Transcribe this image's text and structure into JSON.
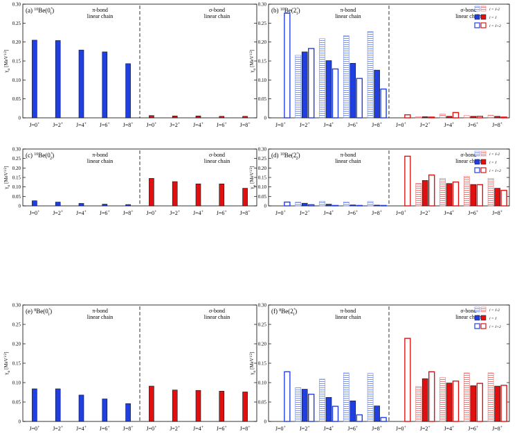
{
  "chart_data": [
    {
      "type": "bar",
      "panel_label": "(a)",
      "title": "(a) 10Be(0+1)",
      "nucleus": "10Be",
      "mass": "10",
      "element": "Be",
      "state": "0",
      "state_sup": "+",
      "state_sub": "1",
      "ylabel": "γα [MeV1/2]",
      "ylim": [
        0,
        0.3
      ],
      "yticks": [
        "0",
        "0.05",
        "0.10",
        "0.15",
        "0.20",
        "0.25",
        "0.30"
      ],
      "region_labels": {
        "left": [
          "π-bond",
          "linear chain"
        ],
        "right": [
          "σ-bond",
          "linear chain"
        ]
      },
      "categories": [
        "J=0+",
        "J=2+",
        "J=4+",
        "J=6+",
        "J=8+"
      ],
      "groups": [
        {
          "name": "π-bond linear chain",
          "color": "blue",
          "series": [
            {
              "name": "l",
              "pattern": "solid",
              "values": [
                0.205,
                0.204,
                0.179,
                0.174,
                0.143
              ]
            }
          ]
        },
        {
          "name": "σ-bond linear chain",
          "color": "red",
          "series": [
            {
              "name": "l",
              "pattern": "solid",
              "values": [
                0.006,
                0.005,
                0.005,
                0.004,
                0.004
              ]
            }
          ]
        }
      ]
    },
    {
      "type": "bar",
      "panel_label": "(b)",
      "title": "(b) 10Be(2+1)",
      "nucleus": "10Be",
      "mass": "10",
      "element": "Be",
      "state": "2",
      "state_sup": "+",
      "state_sub": "1",
      "ylabel": "γα [MeV1/2]",
      "ylim": [
        0,
        0.3
      ],
      "yticks": [
        "0",
        "0.05",
        "0.10",
        "0.15",
        "0.20",
        "0.25",
        "0.30"
      ],
      "region_labels": {
        "left": [
          "π-bond",
          "linear chain"
        ],
        "right": [
          "σ-bond",
          "linear chain"
        ]
      },
      "legend": [
        "l = J-2",
        "l = J",
        "l = J+2"
      ],
      "legend_position": "top-right",
      "categories": [
        "J=0+",
        "J=2+",
        "J=4+",
        "J=6+",
        "J=8+"
      ],
      "groups": [
        {
          "name": "π-bond linear chain",
          "color": "blue",
          "series": [
            {
              "name": "l = J-2",
              "pattern": "hatched",
              "values": [
                null,
                0.165,
                0.209,
                0.217,
                0.228
              ]
            },
            {
              "name": "l = J",
              "pattern": "solid",
              "values": [
                null,
                0.174,
                0.151,
                0.144,
                0.126
              ]
            },
            {
              "name": "l = J+2",
              "pattern": "open",
              "values": [
                0.276,
                0.183,
                0.129,
                0.104,
                0.076
              ]
            }
          ]
        },
        {
          "name": "σ-bond linear chain",
          "color": "red",
          "series": [
            {
              "name": "l = J-2",
              "pattern": "hatched",
              "values": [
                null,
                0.003,
                0.01,
                0.006,
                0.007
              ]
            },
            {
              "name": "l = J",
              "pattern": "solid",
              "values": [
                null,
                0.003,
                0.004,
                0.004,
                0.004
              ]
            },
            {
              "name": "l = J+2",
              "pattern": "open",
              "values": [
                0.008,
                0.002,
                0.014,
                0.004,
                0.002
              ]
            }
          ]
        }
      ]
    },
    {
      "type": "bar",
      "panel_label": "(c)",
      "title": "(c) 10Be(0+2)",
      "nucleus": "10Be",
      "mass": "10",
      "element": "Be",
      "state": "0",
      "state_sup": "+",
      "state_sub": "2",
      "ylabel": "γα [MeV1/2]",
      "ylim": [
        0,
        0.3
      ],
      "yticks": [
        "0",
        "0.05",
        "0.10",
        "0.15",
        "0.20",
        "0.25",
        "0.30"
      ],
      "region_labels": {
        "left": [
          "π-bond",
          "linear chain"
        ],
        "right": [
          "σ-bond",
          "linear chain"
        ]
      },
      "categories": [
        "J=0+",
        "J=2+",
        "J=4+",
        "J=6+",
        "J=8+"
      ],
      "groups": [
        {
          "name": "π-bond linear chain",
          "color": "blue",
          "series": [
            {
              "name": "l",
              "pattern": "solid",
              "values": [
                0.027,
                0.02,
                0.013,
                0.009,
                0.007
              ]
            }
          ]
        },
        {
          "name": "σ-bond linear chain",
          "color": "red",
          "series": [
            {
              "name": "l",
              "pattern": "solid",
              "values": [
                0.145,
                0.128,
                0.116,
                0.116,
                0.093
              ]
            }
          ]
        }
      ]
    },
    {
      "type": "bar",
      "panel_label": "(d)",
      "title": "(d) 10Be(2+2)",
      "nucleus": "10Be",
      "mass": "10",
      "element": "Be",
      "state": "2",
      "state_sup": "+",
      "state_sub": "2",
      "ylabel": "γα [MeV1/2]",
      "ylim": [
        0,
        0.3
      ],
      "yticks": [
        "0",
        "0.05",
        "0.10",
        "0.15",
        "0.20",
        "0.25",
        "0.30"
      ],
      "region_labels": {
        "left": [
          "π-bond",
          "linear chain"
        ],
        "right": [
          "σ-bond",
          "linear chain"
        ]
      },
      "legend": [
        "l = J-2",
        "l = J",
        "l = J+2"
      ],
      "legend_position": "top-right",
      "categories": [
        "J=0+",
        "J=2+",
        "J=4+",
        "J=6+",
        "J=8+"
      ],
      "groups": [
        {
          "name": "π-bond linear chain",
          "color": "blue",
          "series": [
            {
              "name": "l = J-2",
              "pattern": "hatched",
              "values": [
                null,
                0.02,
                0.024,
                0.021,
                0.023
              ]
            },
            {
              "name": "l = J",
              "pattern": "solid",
              "values": [
                null,
                0.014,
                0.009,
                0.005,
                0.004
              ]
            },
            {
              "name": "l = J+2",
              "pattern": "open",
              "values": [
                0.02,
                0.006,
                0.002,
                0.002,
                0.001
              ]
            }
          ]
        },
        {
          "name": "σ-bond linear chain",
          "color": "red",
          "series": [
            {
              "name": "l = J-2",
              "pattern": "hatched",
              "values": [
                null,
                0.119,
                0.145,
                0.155,
                0.145
              ]
            },
            {
              "name": "l = J",
              "pattern": "solid",
              "values": [
                null,
                0.134,
                0.118,
                0.113,
                0.093
              ]
            },
            {
              "name": "l = J+2",
              "pattern": "open",
              "values": [
                0.262,
                0.163,
                0.126,
                0.112,
                0.082
              ]
            }
          ]
        }
      ]
    },
    {
      "type": "bar",
      "panel_label": "(e)",
      "title": "(e) 8Be(0+1)",
      "nucleus": "8Be",
      "mass": "8",
      "element": "Be",
      "state": "0",
      "state_sup": "+",
      "state_sub": "1",
      "ylabel": "γα [MeV1/2]",
      "ylim": [
        0,
        0.3
      ],
      "yticks": [
        "0",
        "0.05",
        "0.10",
        "0.15",
        "0.20",
        "0.25",
        "0.30"
      ],
      "region_labels": {
        "left": [
          "π-bond",
          "linear chain"
        ],
        "right": [
          "σ-bond",
          "linear chain"
        ]
      },
      "categories": [
        "J=0+",
        "J=2+",
        "J=4+",
        "J=6+",
        "J=8+"
      ],
      "groups": [
        {
          "name": "π-bond linear chain",
          "color": "blue",
          "series": [
            {
              "name": "l",
              "pattern": "solid",
              "values": [
                0.084,
                0.084,
                0.068,
                0.058,
                0.046
              ]
            }
          ]
        },
        {
          "name": "σ-bond linear chain",
          "color": "red",
          "series": [
            {
              "name": "l",
              "pattern": "solid",
              "values": [
                0.091,
                0.081,
                0.08,
                0.078,
                0.076
              ]
            }
          ]
        }
      ]
    },
    {
      "type": "bar",
      "panel_label": "(f)",
      "title": "(f) 8Be(2+1)",
      "nucleus": "8Be",
      "mass": "8",
      "element": "Be",
      "state": "2",
      "state_sup": "+",
      "state_sub": "1",
      "ylabel": "γα [MeV1/2]",
      "ylim": [
        0,
        0.3
      ],
      "yticks": [
        "0",
        "0.05",
        "0.10",
        "0.15",
        "0.20",
        "0.25",
        "0.30"
      ],
      "region_labels": {
        "left": [
          "π-bond",
          "linear chain"
        ],
        "right": [
          "σ-bond",
          "linear chain"
        ]
      },
      "legend": [
        "l = J-2",
        "l = J",
        "l = J+2"
      ],
      "legend_position": "top-right",
      "categories": [
        "J=0+",
        "J=2+",
        "J=4+",
        "J=6+",
        "J=8+"
      ],
      "groups": [
        {
          "name": "π-bond linear chain",
          "color": "blue",
          "series": [
            {
              "name": "l = J-2",
              "pattern": "hatched",
              "values": [
                null,
                0.087,
                0.109,
                0.125,
                0.124
              ]
            },
            {
              "name": "l = J",
              "pattern": "solid",
              "values": [
                null,
                0.083,
                0.062,
                0.053,
                0.04
              ]
            },
            {
              "name": "l = J+2",
              "pattern": "open",
              "values": [
                0.128,
                0.07,
                0.039,
                0.017,
                0.01
              ]
            }
          ]
        },
        {
          "name": "σ-bond linear chain",
          "color": "red",
          "series": [
            {
              "name": "l = J-2",
              "pattern": "hatched",
              "values": [
                null,
                0.09,
                0.113,
                0.125,
                0.125
              ]
            },
            {
              "name": "l = J",
              "pattern": "solid",
              "values": [
                null,
                0.11,
                0.099,
                0.092,
                0.091
              ]
            },
            {
              "name": "l = J+2",
              "pattern": "open",
              "values": [
                0.214,
                0.128,
                0.104,
                0.098,
                0.093
              ]
            }
          ]
        }
      ]
    }
  ],
  "colors": {
    "blue": "#1f3fe0",
    "red": "#e01010",
    "blue_hatch": "#7f96ee",
    "red_hatch": "#ef7b7b"
  }
}
